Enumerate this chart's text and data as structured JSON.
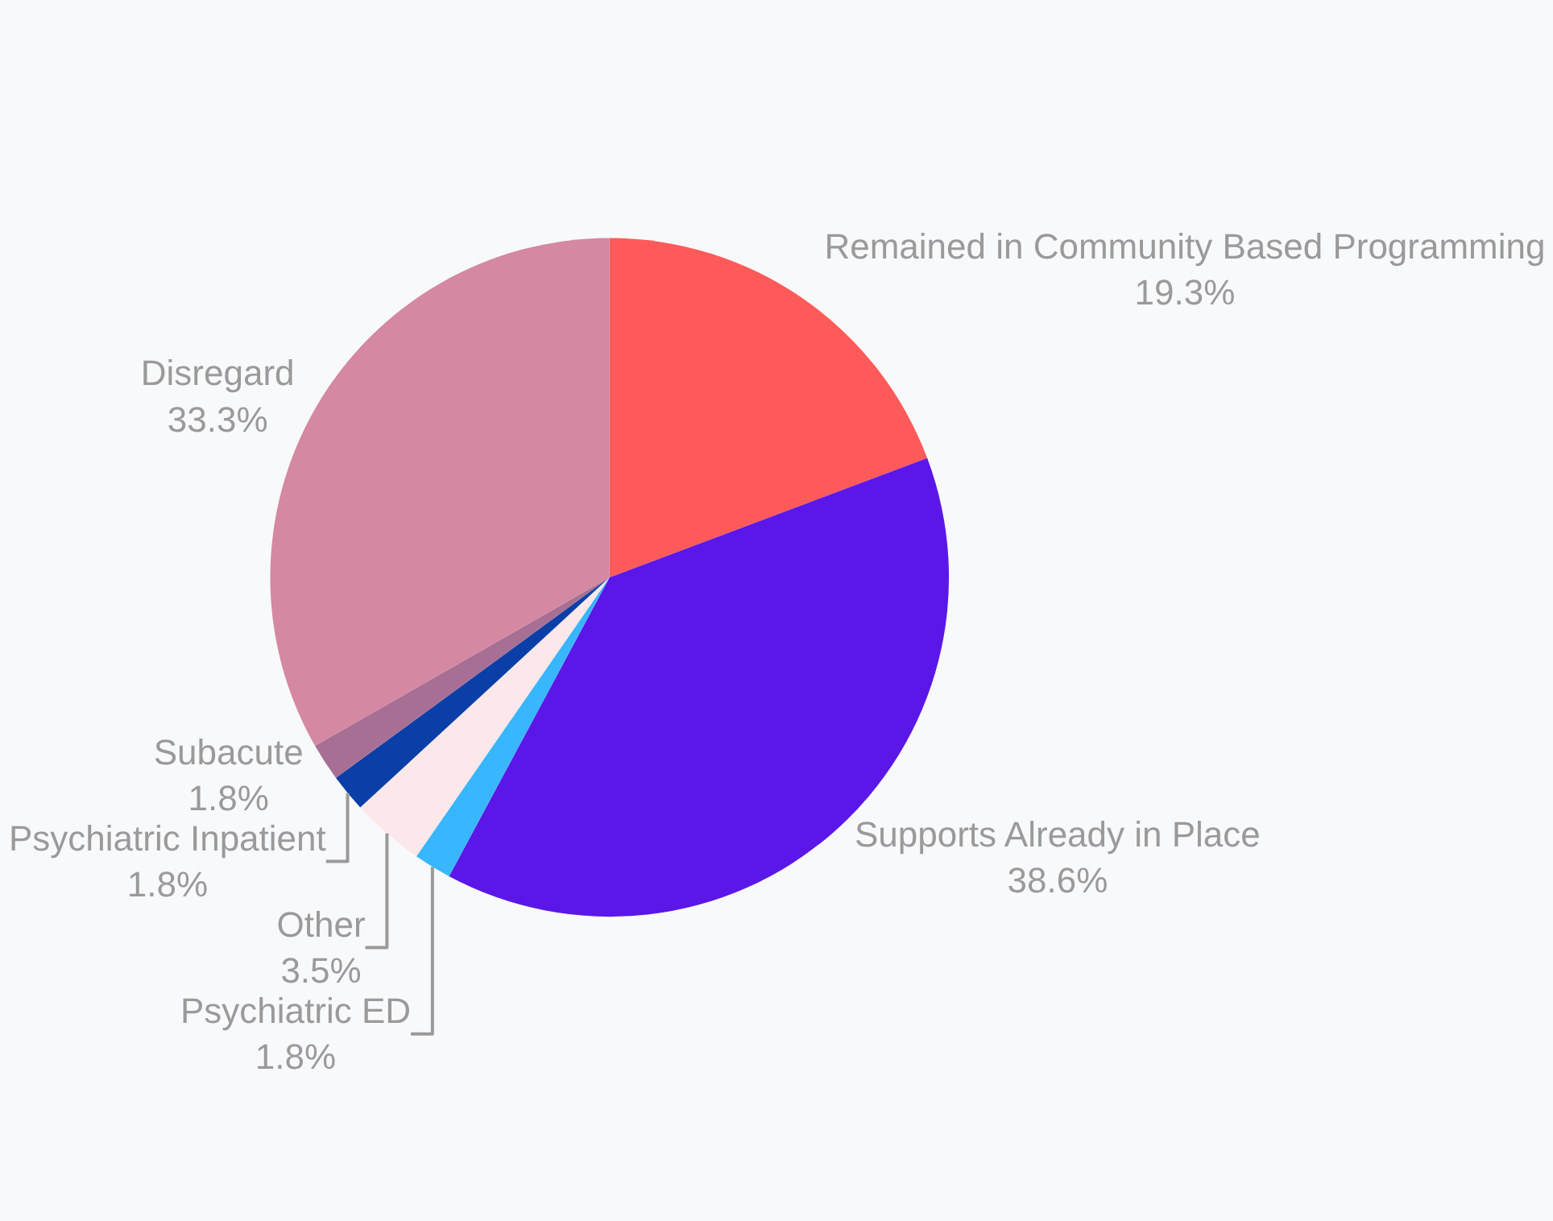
{
  "chart_data": {
    "type": "pie",
    "categories": [
      "Remained in Community Based Programming",
      "Supports Already in Place",
      "Psychiatric ED",
      "Other",
      "Psychiatric Inpatient",
      "Subacute",
      "Disregard"
    ],
    "values": [
      19.3,
      38.6,
      1.8,
      3.5,
      1.8,
      1.8,
      33.3
    ],
    "value_labels": [
      "19.3%",
      "38.6%",
      "1.8%",
      "3.5%",
      "1.8%",
      "1.8%",
      "33.3%"
    ],
    "colors": [
      "#ff5a5a",
      "#5b17e8",
      "#38b6ff",
      "#fce8ea",
      "#0a3fa8",
      "#a86f94",
      "#d488a2"
    ],
    "legend": false
  }
}
